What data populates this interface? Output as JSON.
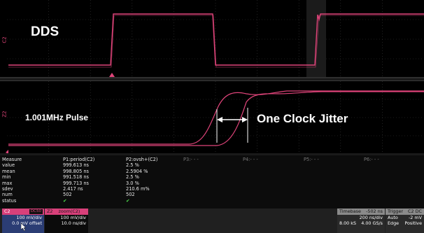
{
  "top_panel": {
    "label": "DDS",
    "channel_tag": "C2"
  },
  "zoom_panel": {
    "pulse_label": "1.001MHz Pulse",
    "jitter_label": "One Clock Jitter",
    "channel_tag": "Z2"
  },
  "measure": {
    "headers": [
      "Measure",
      "P1:period(C2)",
      "P2:ovsh+(C2)",
      "P3:- - -",
      "P4:- - -",
      "P5:- - -",
      "P6:- - -"
    ],
    "rows": [
      {
        "name": "value",
        "p1": "999.613 ns",
        "p2": "2.5 %"
      },
      {
        "name": "mean",
        "p1": "998.805 ns",
        "p2": "2.5904 %"
      },
      {
        "name": "min",
        "p1": "991.518 ns",
        "p2": "2.5 %"
      },
      {
        "name": "max",
        "p1": "999.713 ns",
        "p2": "3.0 %"
      },
      {
        "name": "sdev",
        "p1": "2.417 ns",
        "p2": "210.6 m%"
      },
      {
        "name": "num",
        "p1": "502",
        "p2": "502"
      },
      {
        "name": "status",
        "p1": "✔",
        "p2": "✔"
      }
    ]
  },
  "c2_desc": {
    "name": "C2",
    "coupling": "DC50",
    "vdiv": "100 mV/div",
    "offset": "0.0 mV offset"
  },
  "z2_desc": {
    "name": "Z2",
    "title": "zoom(C2)",
    "vdiv": "100 mV/div",
    "tdiv": "10.0 ns/div"
  },
  "timebase": {
    "title": "Timebase",
    "delay": "-502 ns",
    "tdiv": "200 ns/div",
    "samples": "8.00 kS",
    "rate": "4.00 GS/s"
  },
  "trigger": {
    "title": "Trigger",
    "tags": "C2 DC",
    "mode": "Auto",
    "level": "-2 mV",
    "type": "Edge",
    "slope": "Positive"
  },
  "colors": {
    "trace": "#e0447a",
    "grid": "#3a3a3a",
    "background": "#000000"
  }
}
